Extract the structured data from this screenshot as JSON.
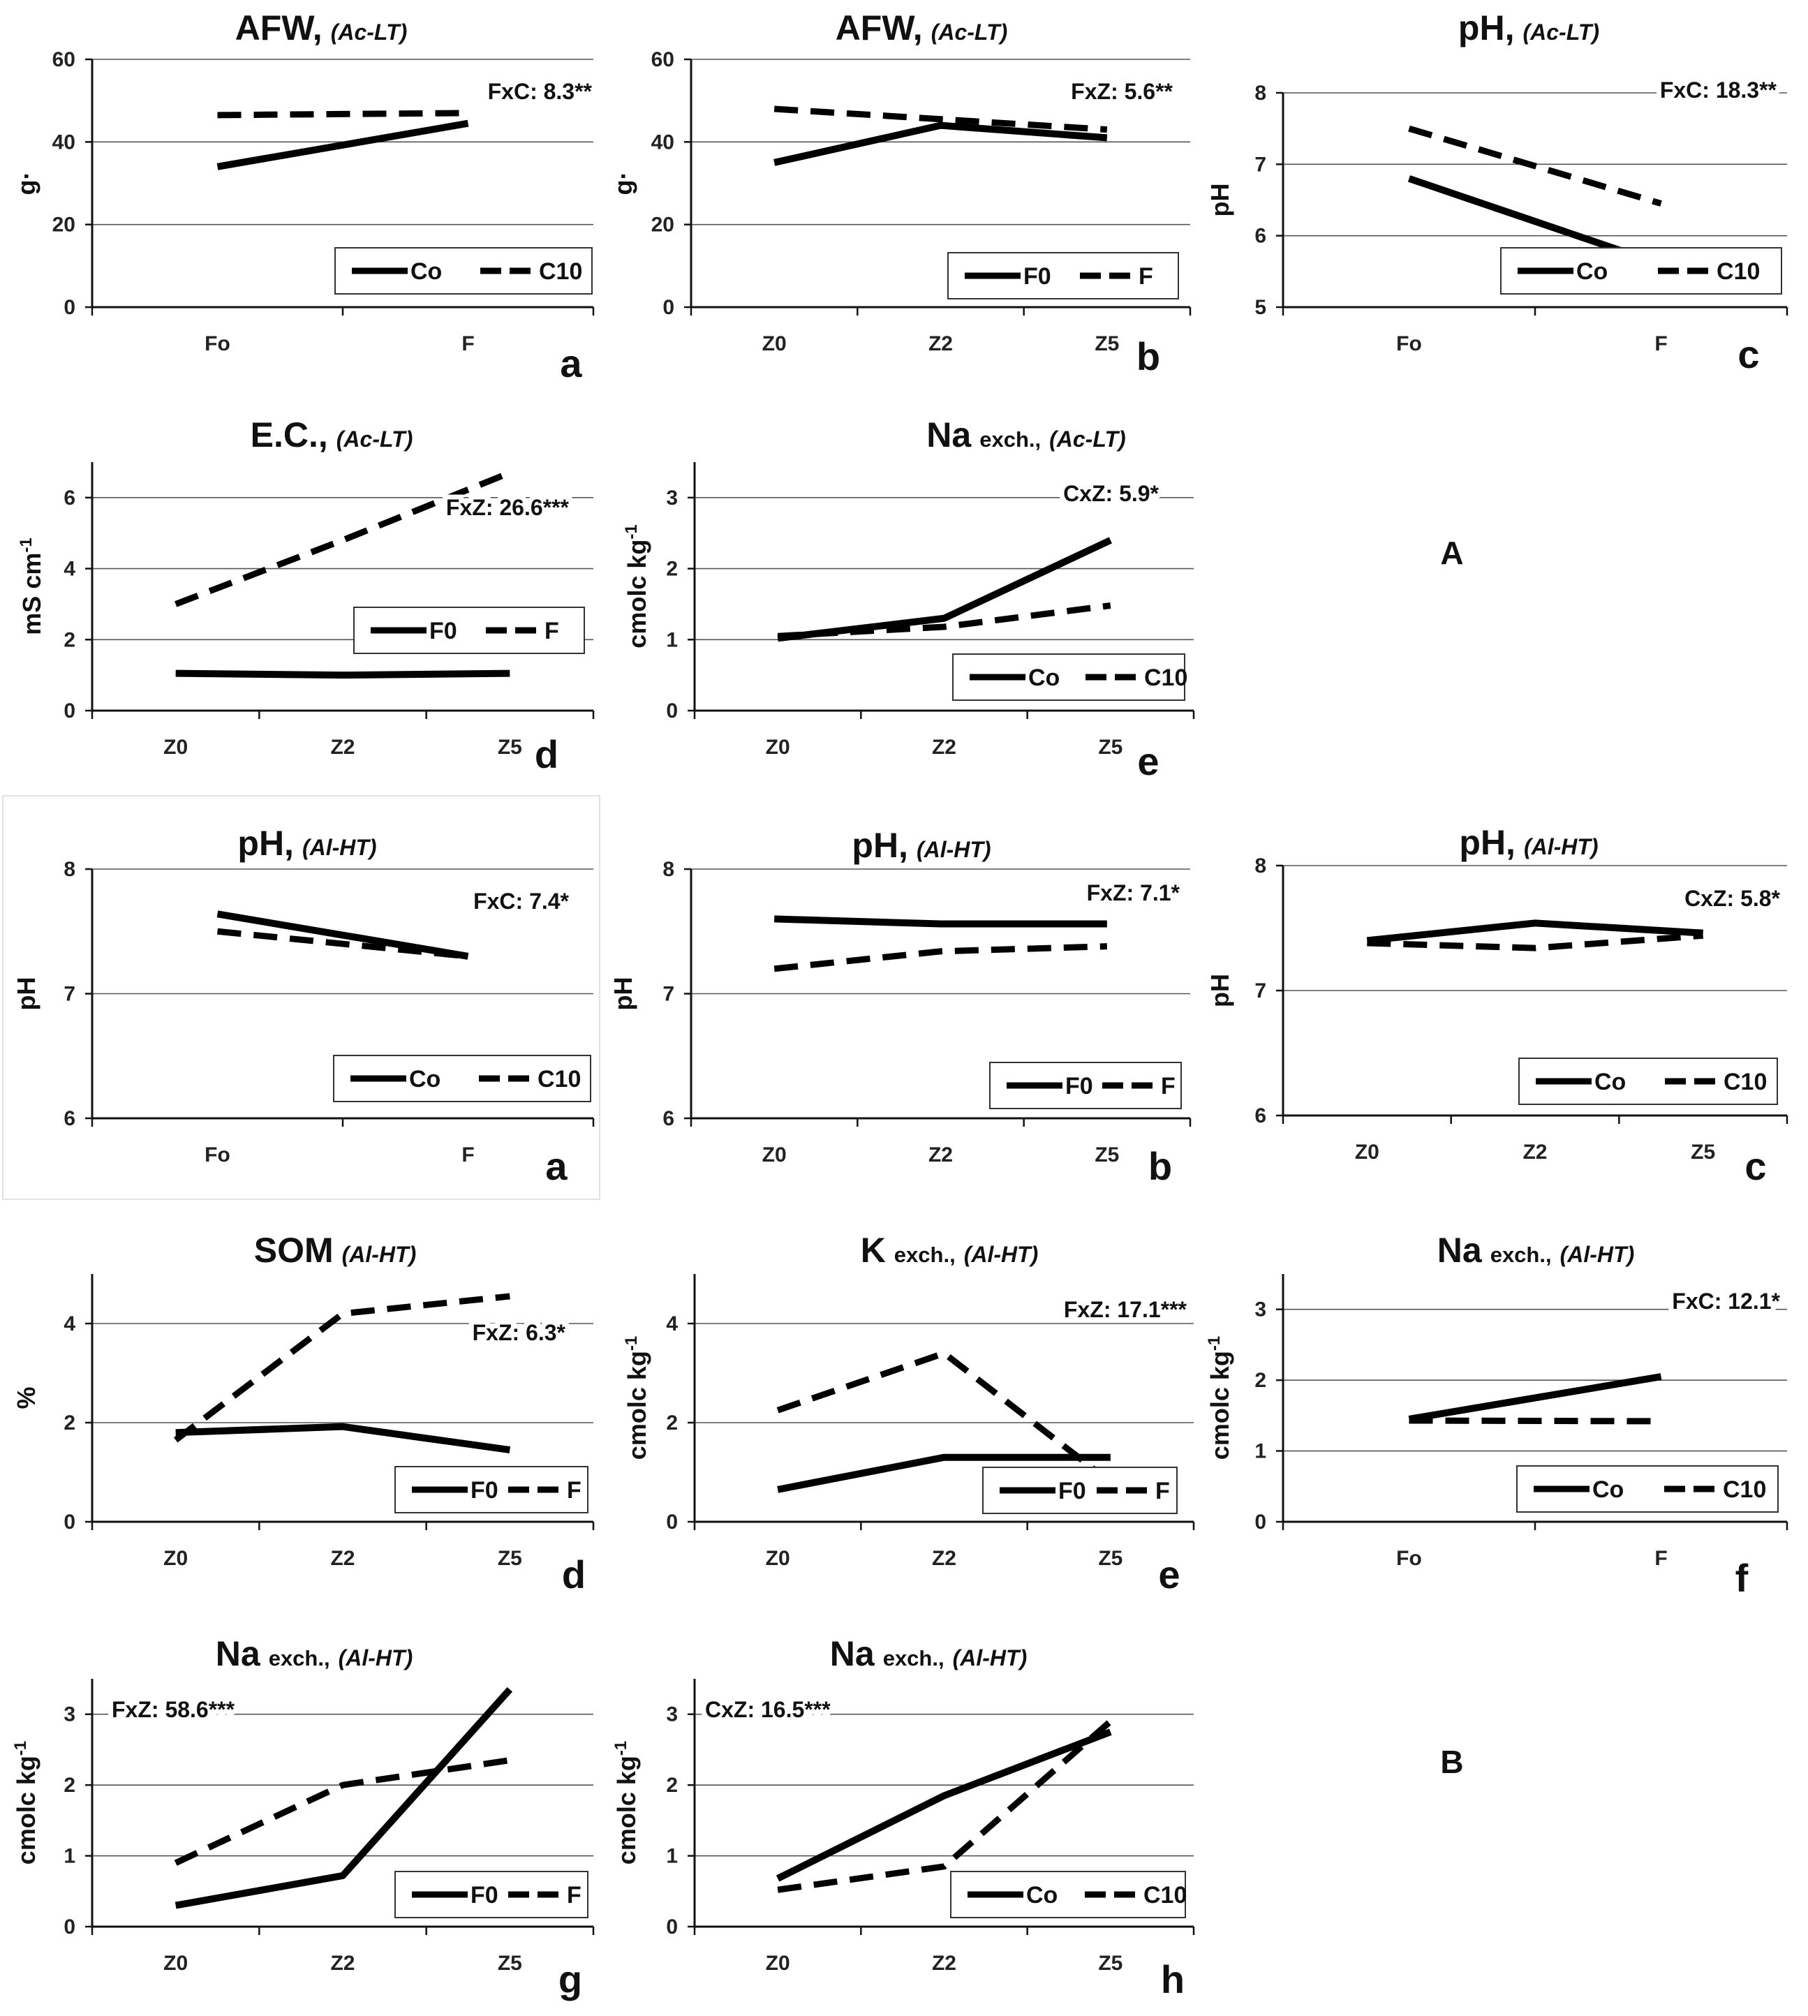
{
  "section_labels": [
    "A",
    "B"
  ],
  "chart_data": [
    {
      "type": "line",
      "title": "AFW,",
      "title_qualifier": "(Ac-LT)",
      "ylabel": "g·",
      "ylim": [
        0,
        60
      ],
      "yticks": [
        0,
        20,
        40,
        60
      ],
      "categories": [
        "Fo",
        "F"
      ],
      "series": [
        {
          "name": "Co",
          "style": "solid",
          "values": [
            34,
            44.5
          ]
        },
        {
          "name": "C10",
          "style": "dashed",
          "values": [
            46.5,
            47
          ]
        }
      ],
      "annotation": "FxC: 8.3**",
      "panel_label": "a"
    },
    {
      "type": "line",
      "title": "AFW,",
      "title_qualifier": "(Ac-LT)",
      "ylabel": "g·",
      "ylim": [
        0,
        60
      ],
      "yticks": [
        0,
        20,
        40,
        60
      ],
      "categories": [
        "Z0",
        "Z2",
        "Z5"
      ],
      "series": [
        {
          "name": "F0",
          "style": "solid",
          "values": [
            35,
            44,
            41
          ]
        },
        {
          "name": "F",
          "style": "dashed",
          "values": [
            48,
            45.5,
            43
          ]
        }
      ],
      "annotation": "FxZ: 5.6**",
      "panel_label": "b"
    },
    {
      "type": "line",
      "title": "pH,",
      "title_qualifier": "(Ac-LT)",
      "ylabel": "pH",
      "ylim": [
        5,
        8
      ],
      "yticks": [
        5,
        6,
        7,
        8
      ],
      "categories": [
        "Fo",
        "F"
      ],
      "series": [
        {
          "name": "Co",
          "style": "solid",
          "values": [
            6.8,
            5.6
          ]
        },
        {
          "name": "C10",
          "style": "dashed",
          "values": [
            7.5,
            6.45
          ]
        }
      ],
      "annotation": "FxC: 18.3**",
      "panel_label": "c"
    },
    {
      "type": "line",
      "title": "E.C.,",
      "title_qualifier": "(Ac-LT)",
      "ylabel": "mS cm-1",
      "ylim": [
        0,
        7
      ],
      "yticks": [
        0,
        2,
        4,
        6
      ],
      "categories": [
        "Z0",
        "Z2",
        "Z5"
      ],
      "series": [
        {
          "name": "F0",
          "style": "solid",
          "values": [
            1.05,
            1.0,
            1.05
          ]
        },
        {
          "name": "F",
          "style": "dashed",
          "values": [
            3.0,
            4.8,
            6.7
          ]
        }
      ],
      "annotation": "FxZ: 26.6***",
      "panel_label": "d"
    },
    {
      "type": "line",
      "title": "Na",
      "title_sub": "exch.,",
      "title_qualifier": "(Ac-LT)",
      "ylabel": "cmolc kg-1",
      "ylim": [
        0,
        3.5
      ],
      "yticks": [
        0,
        1,
        2,
        3
      ],
      "categories": [
        "Z0",
        "Z2",
        "Z5"
      ],
      "series": [
        {
          "name": "Co",
          "style": "solid",
          "values": [
            1.02,
            1.3,
            2.4
          ]
        },
        {
          "name": "C10",
          "style": "dashed",
          "values": [
            1.05,
            1.18,
            1.48
          ]
        }
      ],
      "annotation": "CxZ: 5.9*",
      "panel_label": "e"
    },
    {
      "type": "line",
      "title": "pH,",
      "title_qualifier": "(Al-HT)",
      "ylabel": "pH",
      "ylim": [
        6,
        8
      ],
      "yticks": [
        6,
        7,
        8
      ],
      "categories": [
        "Fo",
        "F"
      ],
      "series": [
        {
          "name": "Co",
          "style": "solid",
          "values": [
            7.64,
            7.3
          ]
        },
        {
          "name": "C10",
          "style": "dashed",
          "values": [
            7.5,
            7.3
          ]
        }
      ],
      "annotation": "FxC: 7.4*",
      "panel_label": "a"
    },
    {
      "type": "line",
      "title": "pH,",
      "title_qualifier": "(Al-HT)",
      "ylabel": "pH",
      "ylim": [
        6,
        8
      ],
      "yticks": [
        6,
        7,
        8
      ],
      "categories": [
        "Z0",
        "Z2",
        "Z5"
      ],
      "series": [
        {
          "name": "F0",
          "style": "solid",
          "values": [
            7.6,
            7.56,
            7.56
          ]
        },
        {
          "name": "F",
          "style": "dashed",
          "values": [
            7.2,
            7.34,
            7.38
          ]
        }
      ],
      "annotation": "FxZ: 7.1*",
      "panel_label": "b"
    },
    {
      "type": "line",
      "title": "pH,",
      "title_qualifier": "(Al-HT)",
      "ylabel": "pH",
      "ylim": [
        6,
        8
      ],
      "yticks": [
        6,
        7,
        8
      ],
      "categories": [
        "Z0",
        "Z2",
        "Z5"
      ],
      "series": [
        {
          "name": "Co",
          "style": "solid",
          "values": [
            7.4,
            7.54,
            7.46
          ]
        },
        {
          "name": "C10",
          "style": "dashed",
          "values": [
            7.38,
            7.34,
            7.44
          ]
        }
      ],
      "annotation": "CxZ: 5.8*",
      "panel_label": "c"
    },
    {
      "type": "line",
      "title": "SOM",
      "title_qualifier": "(Al-HT)",
      "ylabel": "%",
      "ylim": [
        0,
        5
      ],
      "yticks": [
        0,
        2,
        4
      ],
      "categories": [
        "Z0",
        "Z2",
        "Z5"
      ],
      "series": [
        {
          "name": "F0",
          "style": "solid",
          "values": [
            1.8,
            1.92,
            1.45
          ]
        },
        {
          "name": "F",
          "style": "dashed",
          "values": [
            1.65,
            4.2,
            4.55
          ]
        }
      ],
      "annotation": "FxZ: 6.3*",
      "panel_label": "d"
    },
    {
      "type": "line",
      "title": "K",
      "title_sub": "exch.,",
      "title_qualifier": "(Al-HT)",
      "ylabel": "cmolc kg-1",
      "ylim": [
        0,
        5
      ],
      "yticks": [
        0,
        2,
        4
      ],
      "categories": [
        "Z0",
        "Z2",
        "Z5"
      ],
      "series": [
        {
          "name": "F0",
          "style": "solid",
          "values": [
            0.65,
            1.3,
            1.3
          ]
        },
        {
          "name": "F",
          "style": "dashed",
          "values": [
            2.25,
            3.4,
            0.8
          ]
        }
      ],
      "annotation": "FxZ: 17.1***",
      "panel_label": "e"
    },
    {
      "type": "line",
      "title": "Na",
      "title_sub": "exch.,",
      "title_qualifier": "(Al-HT)",
      "ylabel": "cmolc kg-1",
      "ylim": [
        0,
        3.5
      ],
      "yticks": [
        0,
        1,
        2,
        3
      ],
      "categories": [
        "Fo",
        "F"
      ],
      "series": [
        {
          "name": "Co",
          "style": "solid",
          "values": [
            1.45,
            2.05
          ]
        },
        {
          "name": "C10",
          "style": "dashed",
          "values": [
            1.43,
            1.42
          ]
        }
      ],
      "annotation": "FxC: 12.1*",
      "panel_label": "f"
    },
    {
      "type": "line",
      "title": "Na",
      "title_sub": "exch.,",
      "title_qualifier": "(Al-HT)",
      "ylabel": "cmolc kg-1",
      "ylim": [
        0,
        3.5
      ],
      "yticks": [
        0,
        1,
        2,
        3
      ],
      "categories": [
        "Z0",
        "Z2",
        "Z5"
      ],
      "series": [
        {
          "name": "F0",
          "style": "solid",
          "values": [
            0.3,
            0.72,
            3.35
          ]
        },
        {
          "name": "F",
          "style": "dashed",
          "values": [
            0.9,
            2.0,
            2.35
          ]
        }
      ],
      "annotation": "FxZ: 58.6***",
      "panel_label": "g"
    },
    {
      "type": "line",
      "title": "Na",
      "title_sub": "exch.,",
      "title_qualifier": "(Al-HT)",
      "ylabel": "cmolc kg-1",
      "ylim": [
        0,
        3.5
      ],
      "yticks": [
        0,
        1,
        2,
        3
      ],
      "categories": [
        "Z0",
        "Z2",
        "Z5"
      ],
      "series": [
        {
          "name": "Co",
          "style": "solid",
          "values": [
            0.68,
            1.85,
            2.75
          ]
        },
        {
          "name": "C10",
          "style": "dashed",
          "values": [
            0.52,
            0.85,
            2.9
          ]
        }
      ],
      "annotation": "CxZ: 16.5***",
      "panel_label": "h"
    }
  ]
}
